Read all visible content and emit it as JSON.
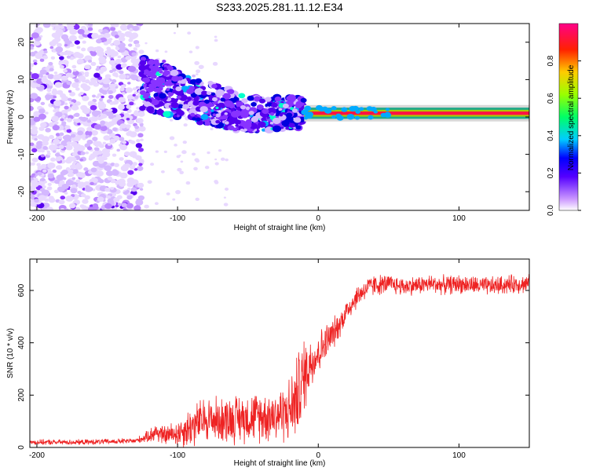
{
  "figure": {
    "title": "S233.2025.281.11.12.E34"
  },
  "colors": {
    "axes": "#000000",
    "snr_line": "#ee2222"
  },
  "chart_data": [
    {
      "type": "heatmap",
      "name": "spectrogram",
      "xlabel": "Height of straight line (km)",
      "ylabel": "Frequency (Hz)",
      "xlim": [
        -205,
        150
      ],
      "ylim": [
        -25,
        25
      ],
      "xticks": [
        -200,
        -100,
        0,
        100
      ],
      "yticks": [
        -20,
        -10,
        0,
        10,
        20
      ],
      "xtick_labels": [
        "-200",
        "-100",
        "0",
        "100"
      ],
      "ytick_labels": [
        "-20",
        "-10",
        "0",
        "10",
        "20"
      ],
      "features": [
        {
          "label": "noise",
          "x_range": [
            -205,
            -125
          ],
          "freq_range": [
            -25,
            25
          ],
          "amplitude": 0.05
        },
        {
          "label": "spread",
          "x_range": [
            -125,
            -10
          ],
          "freq_center_start": 9,
          "freq_center_end": 1,
          "amplitude": 0.2
        },
        {
          "label": "tone",
          "x_range": [
            -10,
            150
          ],
          "freq": 1,
          "amplitude": 0.95
        }
      ],
      "colorbar": {
        "label": "Normalized spectral amplitude",
        "range": [
          0,
          1
        ],
        "ticks": [
          0.0,
          0.2,
          0.4,
          0.6,
          0.8
        ],
        "tick_labels": [
          "0.0",
          "0.2",
          "0.4",
          "0.6",
          "0.8"
        ]
      }
    },
    {
      "type": "line",
      "name": "snr",
      "xlabel": "Height of straight line (km)",
      "ylabel": "SNR (10 * v/v)",
      "xlim": [
        -205,
        150
      ],
      "ylim": [
        0,
        720
      ],
      "xticks": [
        -200,
        -100,
        0,
        100
      ],
      "yticks": [
        0,
        200,
        400,
        600
      ],
      "xtick_labels": [
        "-200",
        "-100",
        "0",
        "100"
      ],
      "ytick_labels": [
        "0",
        "200",
        "400",
        "600"
      ],
      "series": [
        {
          "name": "SNR",
          "x": [
            -205,
            -190,
            -170,
            -150,
            -130,
            -122,
            -115,
            -110,
            -100,
            -90,
            -80,
            -70,
            -60,
            -50,
            -40,
            -30,
            -22,
            -18,
            -15,
            -12,
            -10,
            -8,
            -5,
            0,
            5,
            10,
            15,
            20,
            25,
            30,
            35,
            40,
            50,
            60,
            70,
            80,
            90,
            100,
            110,
            120,
            130,
            140,
            150
          ],
          "mean": [
            20,
            20,
            20,
            22,
            25,
            40,
            60,
            45,
            55,
            80,
            110,
            105,
            110,
            115,
            120,
            125,
            135,
            160,
            200,
            240,
            270,
            300,
            330,
            360,
            400,
            430,
            470,
            520,
            560,
            590,
            610,
            620,
            625,
            615,
            620,
            625,
            620,
            625,
            620,
            615,
            620,
            625,
            625
          ],
          "noise": [
            10,
            10,
            10,
            10,
            10,
            20,
            40,
            35,
            50,
            80,
            85,
            85,
            90,
            90,
            95,
            100,
            110,
            140,
            150,
            160,
            150,
            120,
            100,
            80,
            70,
            60,
            50,
            45,
            45,
            40,
            40,
            40,
            35,
            35,
            35,
            35,
            35,
            35,
            35,
            35,
            35,
            35,
            35
          ]
        }
      ]
    }
  ]
}
